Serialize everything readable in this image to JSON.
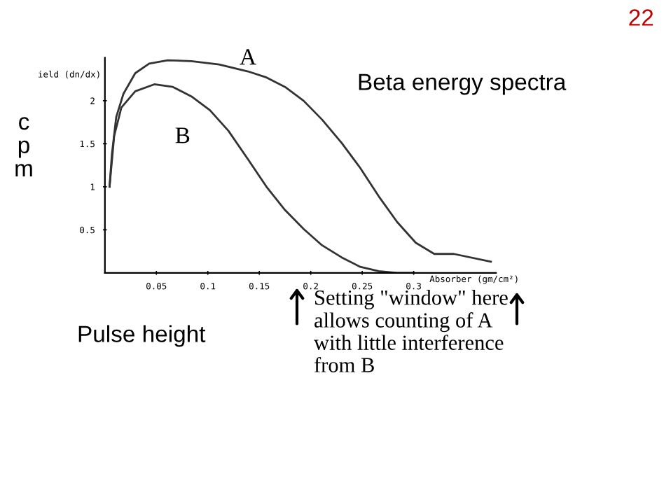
{
  "chart_data": {
    "type": "line",
    "ylabel": "ield (dn/dx)",
    "xlabel": "Absorber (gm/cm²)",
    "series": [
      {
        "name": "A",
        "color": "#333333",
        "x": [
          0.0045,
          0.0068,
          0.011,
          0.018,
          0.0295,
          0.043,
          0.061,
          0.084,
          0.111,
          0.139,
          0.157,
          0.175,
          0.193,
          0.211,
          0.23,
          0.248,
          0.266,
          0.284,
          0.302,
          0.32,
          0.339,
          0.375
        ],
        "values": [
          1.0,
          1.38,
          1.81,
          2.08,
          2.32,
          2.43,
          2.47,
          2.46,
          2.42,
          2.34,
          2.27,
          2.16,
          2.0,
          1.78,
          1.51,
          1.22,
          0.89,
          0.59,
          0.35,
          0.22,
          0.22,
          0.13
        ]
      },
      {
        "name": "B",
        "color": "#333333",
        "x": [
          0.0045,
          0.009,
          0.016,
          0.0295,
          0.048,
          0.066,
          0.084,
          0.102,
          0.12,
          0.139,
          0.157,
          0.175,
          0.193,
          0.211,
          0.23,
          0.248,
          0.266,
          0.284,
          0.3
        ],
        "values": [
          1.0,
          1.59,
          1.92,
          2.11,
          2.19,
          2.16,
          2.05,
          1.89,
          1.65,
          1.32,
          1.0,
          0.73,
          0.51,
          0.32,
          0.18,
          0.07,
          0.02,
          0.0,
          0.0
        ]
      }
    ],
    "xlim": [
      0,
      0.38
    ],
    "ylim": [
      0,
      2.5
    ],
    "xticks": [
      0.05,
      0.1,
      0.15,
      0.2,
      0.25,
      0.3
    ],
    "yticks": [
      0.5,
      1,
      1.5,
      2
    ],
    "grid": false,
    "legend": false,
    "marker": "none",
    "line_style": "solid",
    "annotations": [
      "Setting \"window\" here allows counting of A with little interference from B",
      "Beta energy spectra",
      "c\np\nm",
      "Pulse height",
      "22"
    ]
  }
}
